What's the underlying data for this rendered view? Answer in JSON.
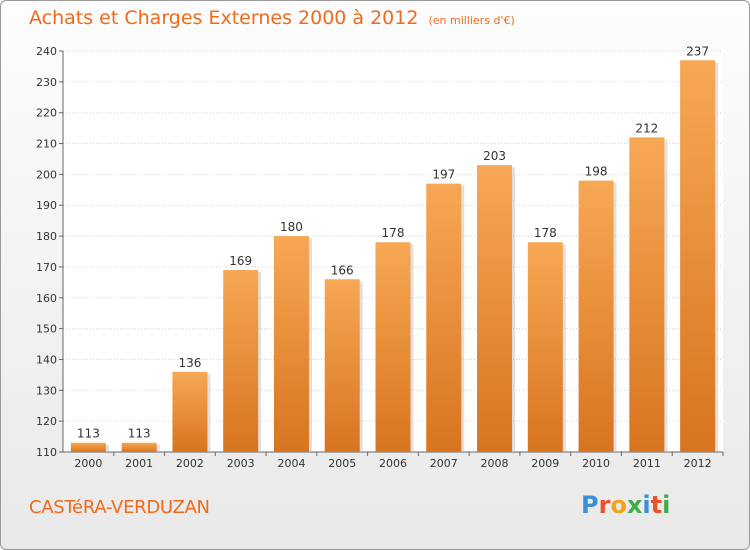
{
  "header": {
    "title": "Achats et Charges Externes 2000 à 2012",
    "unit": "(en milliers d'€)"
  },
  "footer": {
    "city": "CASTéRA-VERDUZAN",
    "logo": {
      "text": "Proxiti",
      "letters": [
        "P",
        "r",
        "o",
        "x",
        "i",
        "t",
        "i"
      ],
      "colors": [
        "#3a8fd8",
        "#e8532b",
        "#f3a21b",
        "#3fae49",
        "#3a8fd8",
        "#e8532b",
        "#3fae49"
      ]
    }
  },
  "colors": {
    "accent": "#ef6a1c",
    "bar_light": "#f7a855",
    "bar_dark": "#d8741f"
  },
  "chart_data": {
    "type": "bar",
    "title": "Achats et Charges Externes 2000 à 2012",
    "subtitle": "(en milliers d'€)",
    "categories": [
      "2000",
      "2001",
      "2002",
      "2003",
      "2004",
      "2005",
      "2006",
      "2007",
      "2008",
      "2009",
      "2010",
      "2011",
      "2012"
    ],
    "values": [
      113,
      113,
      136,
      169,
      180,
      166,
      178,
      197,
      203,
      178,
      198,
      212,
      237
    ],
    "ylim": [
      110,
      240
    ],
    "yticks": [
      110,
      120,
      130,
      140,
      150,
      160,
      170,
      180,
      190,
      200,
      210,
      220,
      230,
      240
    ],
    "grid": true,
    "xlabel": "",
    "ylabel": ""
  }
}
